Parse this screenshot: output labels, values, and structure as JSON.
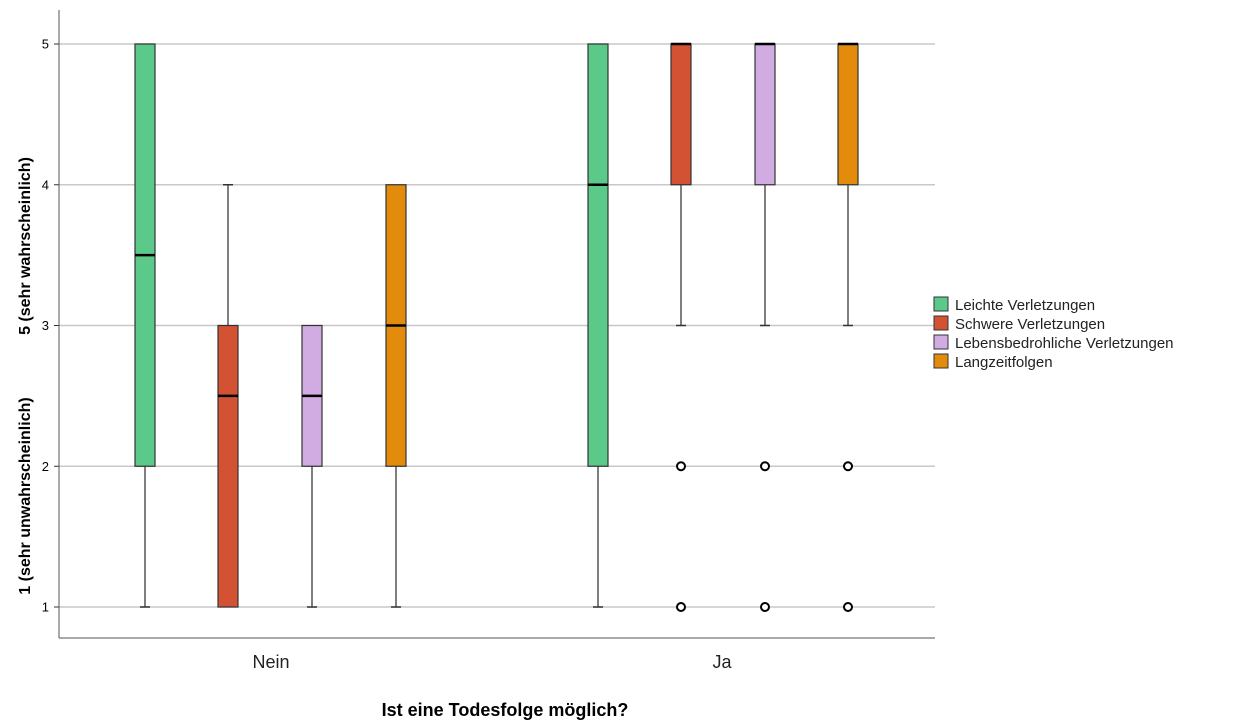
{
  "chart_data": {
    "type": "boxplot",
    "xlabel": "Ist eine Todesfolge möglich?",
    "ylabel_top": "5 (sehr wahrscheinlich)",
    "ylabel_bottom": "1 (sehr unwahrscheinlich)",
    "yticks": [
      "1",
      "2",
      "3",
      "4",
      "5"
    ],
    "ylim": [
      0.78,
      5.24
    ],
    "grid": true,
    "legend_position": "right",
    "categories": [
      "Nein",
      "Ja"
    ],
    "series": [
      {
        "name": "Leichte Verletzungen",
        "color": "#5bc98a",
        "boxes": [
          {
            "category": "Nein",
            "min": 1,
            "q1": 2,
            "median": 3.5,
            "q3": 5,
            "max": 5,
            "outliers": []
          },
          {
            "category": "Ja",
            "min": 1,
            "q1": 2,
            "median": 4,
            "q3": 5,
            "max": 5,
            "outliers": []
          }
        ]
      },
      {
        "name": "Schwere Verletzungen",
        "color": "#d35233",
        "boxes": [
          {
            "category": "Nein",
            "min": 1,
            "q1": 1,
            "median": 2.5,
            "q3": 3,
            "max": 4,
            "outliers": []
          },
          {
            "category": "Ja",
            "min": 3,
            "q1": 4,
            "median": 5,
            "q3": 5,
            "max": 5,
            "outliers": [
              2,
              1
            ]
          }
        ]
      },
      {
        "name": "Lebensbedrohliche Verletzungen",
        "color": "#d0ace3",
        "boxes": [
          {
            "category": "Nein",
            "min": 1,
            "q1": 2,
            "median": 2.5,
            "q3": 3,
            "max": 3,
            "outliers": []
          },
          {
            "category": "Ja",
            "min": 3,
            "q1": 4,
            "median": 5,
            "q3": 5,
            "max": 5,
            "outliers": [
              2,
              1
            ]
          }
        ]
      },
      {
        "name": "Langzeitfolgen",
        "color": "#e38c0c",
        "boxes": [
          {
            "category": "Nein",
            "min": 1,
            "q1": 2,
            "median": 3,
            "q3": 4,
            "max": 4,
            "outliers": []
          },
          {
            "category": "Ja",
            "min": 3,
            "q1": 4,
            "median": 5,
            "q3": 5,
            "max": 5,
            "outliers": [
              2,
              1
            ]
          }
        ]
      }
    ]
  }
}
